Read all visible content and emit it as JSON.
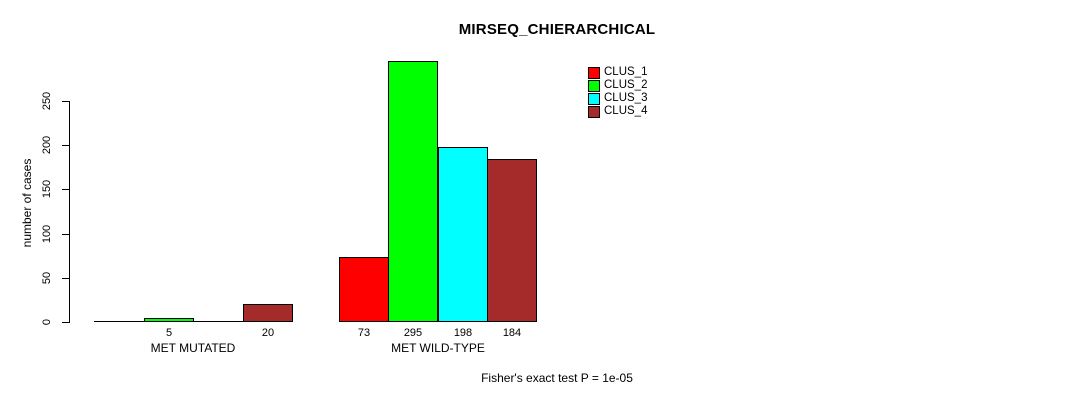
{
  "chart_data": {
    "type": "bar",
    "title": "MIRSEQ_CHIERARCHICAL",
    "ylabel": "number of cases",
    "xlabel": "",
    "annotation": "Fisher's exact test P = 1e-05",
    "categories": [
      "MET MUTATED",
      "MET WILD-TYPE"
    ],
    "series": [
      {
        "name": "CLUS_1",
        "color": "#FF0000",
        "values": [
          0,
          73
        ]
      },
      {
        "name": "CLUS_2",
        "color": "#00FF00",
        "values": [
          5,
          295
        ]
      },
      {
        "name": "CLUS_3",
        "color": "#00FFFF",
        "values": [
          0,
          198
        ]
      },
      {
        "name": "CLUS_4",
        "color": "#A52A2A",
        "values": [
          20,
          184
        ]
      }
    ],
    "bar_value_labels": [
      [
        "",
        "5",
        "",
        "20"
      ],
      [
        "73",
        "295",
        "198",
        "184"
      ]
    ],
    "yticks": [
      0,
      50,
      100,
      150,
      200,
      250
    ],
    "ylim": [
      0,
      250
    ],
    "grid": false,
    "legend_position": "top-right",
    "bar_border_color": "#000000",
    "axis_color": "#000000",
    "background_color": "#FFFFFF"
  }
}
